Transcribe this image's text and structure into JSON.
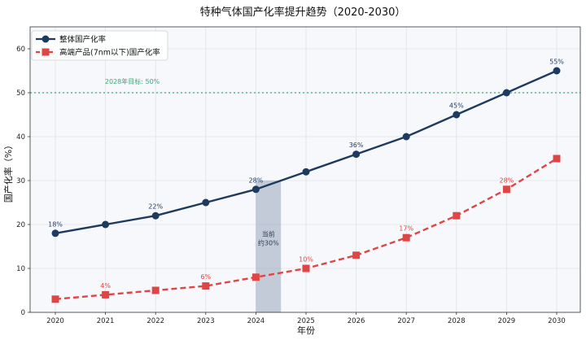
{
  "chart_data": {
    "type": "line",
    "title": "特种气体国产化率提升趋势（2020-2030）",
    "xlabel": "年份",
    "ylabel": "国产化率（%）",
    "x": [
      "2020",
      "2021",
      "2022",
      "2023",
      "2024",
      "2025",
      "2026",
      "2027",
      "2028",
      "2029",
      "2030"
    ],
    "ylim": [
      0,
      65
    ],
    "yticks": [
      "0",
      "10",
      "20",
      "30",
      "40",
      "50",
      "60"
    ],
    "grid": true,
    "legend_position": "top-left",
    "series": [
      {
        "name": "整体国产化率",
        "values": [
          18,
          20,
          22,
          25,
          28,
          32,
          36,
          40,
          45,
          50,
          55
        ],
        "color": "#1f3a5f",
        "style": "solid",
        "marker": "circle",
        "data_labels": [
          {
            "index": 0,
            "text": "18%"
          },
          {
            "index": 2,
            "text": "22%"
          },
          {
            "index": 4,
            "text": "28%"
          },
          {
            "index": 6,
            "text": "36%"
          },
          {
            "index": 8,
            "text": "45%"
          },
          {
            "index": 10,
            "text": "55%"
          }
        ]
      },
      {
        "name": "高端产品(7nm以下)国产化率",
        "values": [
          3,
          4,
          5,
          6,
          8,
          10,
          13,
          17,
          22,
          28,
          35
        ],
        "color": "#e04545",
        "style": "dashed",
        "marker": "square",
        "data_labels": [
          {
            "index": 1,
            "text": "4%"
          },
          {
            "index": 3,
            "text": "6%"
          },
          {
            "index": 5,
            "text": "10%"
          },
          {
            "index": 7,
            "text": "17%"
          },
          {
            "index": 9,
            "text": "28%"
          }
        ]
      }
    ],
    "reference_line": {
      "value": 50,
      "label": "2028年目标: 50%",
      "color": "#3aa876"
    },
    "highlight_span": {
      "from": 2024,
      "to": 2024.5,
      "value": 30,
      "label_line1": "当前",
      "label_line2": "约30%",
      "color": "#8d9db3"
    }
  }
}
